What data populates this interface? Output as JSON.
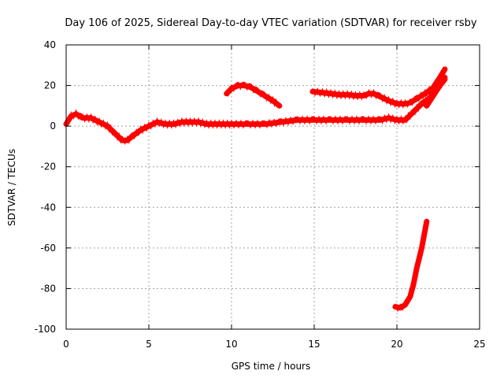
{
  "chart_data": {
    "type": "line",
    "title": "Day 106 of 2025, Sidereal Day-to-day VTEC variation (SDTVAR) for receiver rsby",
    "xlabel": "GPS time / hours",
    "ylabel": "SDTVAR / TECUs",
    "xlim": [
      0,
      25
    ],
    "ylim": [
      -100,
      40
    ],
    "xticks": [
      0,
      5,
      10,
      15,
      20,
      25
    ],
    "yticks": [
      -100,
      -80,
      -60,
      -40,
      -20,
      0,
      20,
      40
    ],
    "grid": true,
    "line_color": "#ff0000",
    "series": [
      {
        "name": "main-band",
        "x": [
          0.0,
          0.3,
          0.6,
          1.0,
          1.5,
          2.0,
          2.5,
          3.0,
          3.4,
          3.7,
          4.0,
          4.5,
          5.0,
          5.5,
          6.0,
          6.5,
          7.0,
          7.5,
          8.0,
          8.5,
          9.0,
          9.5,
          10.0,
          11.0,
          12.0,
          13.0,
          14.0,
          15.0,
          16.0,
          17.0,
          18.0,
          19.0,
          19.5,
          20.0,
          20.5,
          21.0,
          21.5,
          22.0,
          22.5,
          22.9
        ],
        "y": [
          1,
          5,
          6,
          4,
          4,
          2,
          0,
          -4,
          -7,
          -7,
          -5,
          -2,
          0,
          2,
          1,
          1,
          2,
          2,
          2,
          1,
          1,
          1,
          1,
          1,
          1,
          2,
          3,
          3,
          3,
          3,
          3,
          3,
          4,
          3,
          3,
          7,
          11,
          14,
          20,
          24
        ]
      },
      {
        "name": "arc-near-hour-10",
        "x": [
          9.7,
          10.0,
          10.4,
          10.8,
          11.2,
          11.6,
          12.0,
          12.5,
          12.9
        ],
        "y": [
          16,
          18.5,
          20,
          20,
          19,
          17,
          15,
          12.5,
          10
        ]
      },
      {
        "name": "upper-band",
        "x": [
          14.9,
          15.5,
          16.0,
          16.5,
          17.0,
          17.5,
          18.0,
          18.3,
          18.6,
          19.0,
          19.5,
          20.0,
          20.5,
          20.8,
          21.2,
          21.7,
          22.2,
          22.6,
          22.9
        ],
        "y": [
          17,
          16.5,
          16,
          15.5,
          15.5,
          15,
          15,
          16,
          16,
          14.5,
          12.5,
          11,
          11,
          11.5,
          13.5,
          16,
          19,
          24,
          28
        ]
      },
      {
        "name": "lower-branch",
        "x": [
          19.9,
          20.2,
          20.5,
          20.8,
          21.0,
          21.2,
          21.5,
          21.8
        ],
        "y": [
          -89,
          -89.5,
          -88,
          -84,
          -78,
          -70,
          -60,
          -47
        ]
      },
      {
        "name": "right-cluster",
        "x": [
          21.8,
          22.2,
          22.6,
          22.9
        ],
        "y": [
          10,
          15,
          20,
          23
        ]
      }
    ]
  }
}
